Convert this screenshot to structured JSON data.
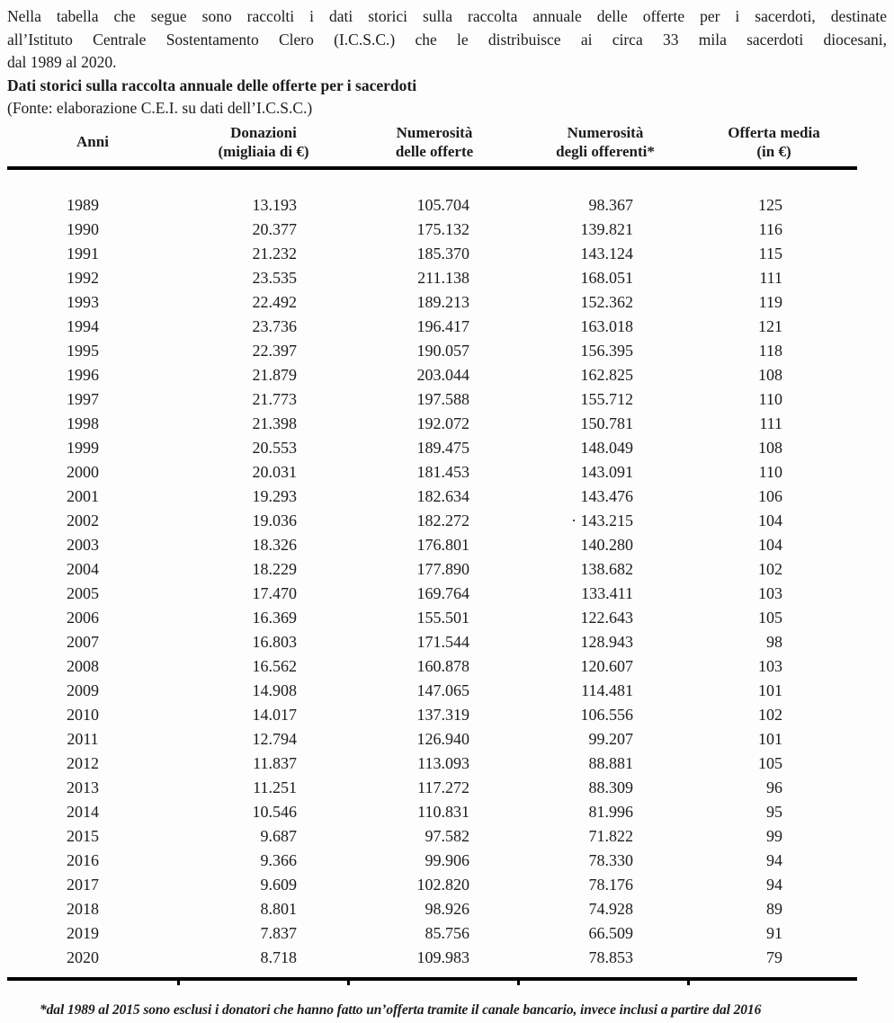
{
  "page": {
    "intro_lines": [
      "Nella tabella che segue sono raccolti i dati storici sulla raccolta annuale delle offerte per i sacerdoti, destinate",
      "all’Istituto Centrale Sostentamento Clero (I.C.S.C.) che le distribuisce ai circa 33 mila sacerdoti diocesani,",
      "dal 1989 al 2020."
    ],
    "title": "Dati storici sulla raccolta annuale delle offerte per i sacerdoti",
    "source": "(Fonte: elaborazione C.E.I. su dati dell’I.C.S.C.)",
    "footnote": "*dal 1989 al 2015 sono esclusi i donatori che hanno fatto un’offerta tramite il canale bancario, invece inclusi a partire dal 2016"
  },
  "table": {
    "column_keys": [
      "anno",
      "donazioni",
      "offerte",
      "offerenti",
      "media"
    ],
    "headers": [
      {
        "line1": "Anni",
        "line2": ""
      },
      {
        "line1": "Donazioni",
        "line2": "(migliaia di €)"
      },
      {
        "line1": "Numerosità",
        "line2": "delle offerte"
      },
      {
        "line1": "Numerosità",
        "line2": "degli offerenti*"
      },
      {
        "line1": "Offerta media",
        "line2": "(in €)"
      }
    ],
    "rows": [
      [
        "1989",
        "13.193",
        "105.704",
        "98.367",
        "125"
      ],
      [
        "1990",
        "20.377",
        "175.132",
        "139.821",
        "116"
      ],
      [
        "1991",
        "21.232",
        "185.370",
        "143.124",
        "115"
      ],
      [
        "1992",
        "23.535",
        "211.138",
        "168.051",
        "111"
      ],
      [
        "1993",
        "22.492",
        "189.213",
        "152.362",
        "119"
      ],
      [
        "1994",
        "23.736",
        "196.417",
        "163.018",
        "121"
      ],
      [
        "1995",
        "22.397",
        "190.057",
        "156.395",
        "118"
      ],
      [
        "1996",
        "21.879",
        "203.044",
        "162.825",
        "108"
      ],
      [
        "1997",
        "21.773",
        "197.588",
        "155.712",
        "110"
      ],
      [
        "1998",
        "21.398",
        "192.072",
        "150.781",
        "111"
      ],
      [
        "1999",
        "20.553",
        "189.475",
        "148.049",
        "108"
      ],
      [
        "2000",
        "20.031",
        "181.453",
        "143.091",
        "110"
      ],
      [
        "2001",
        "19.293",
        "182.634",
        "143.476",
        "106"
      ],
      [
        "2002",
        "19.036",
        "182.272",
        "· 143.215",
        "104"
      ],
      [
        "2003",
        "18.326",
        "176.801",
        "140.280",
        "104"
      ],
      [
        "2004",
        "18.229",
        "177.890",
        "138.682",
        "102"
      ],
      [
        "2005",
        "17.470",
        "169.764",
        "133.411",
        "103"
      ],
      [
        "2006",
        "16.369",
        "155.501",
        "122.643",
        "105"
      ],
      [
        "2007",
        "16.803",
        "171.544",
        "128.943",
        "98"
      ],
      [
        "2008",
        "16.562",
        "160.878",
        "120.607",
        "103"
      ],
      [
        "2009",
        "14.908",
        "147.065",
        "114.481",
        "101"
      ],
      [
        "2010",
        "14.017",
        "137.319",
        "106.556",
        "102"
      ],
      [
        "2011",
        "12.794",
        "126.940",
        "99.207",
        "101"
      ],
      [
        "2012",
        "11.837",
        "113.093",
        "88.881",
        "105"
      ],
      [
        "2013",
        "11.251",
        "117.272",
        "88.309",
        "96"
      ],
      [
        "2014",
        "10.546",
        "110.831",
        "81.996",
        "95"
      ],
      [
        "2015",
        "9.687",
        "97.582",
        "71.822",
        "99"
      ],
      [
        "2016",
        "9.366",
        "99.906",
        "78.330",
        "94"
      ],
      [
        "2017",
        "9.609",
        "102.820",
        "78.176",
        "94"
      ],
      [
        "2018",
        "8.801",
        "98.926",
        "74.928",
        "89"
      ],
      [
        "2019",
        "7.837",
        "85.756",
        "66.509",
        "91"
      ],
      [
        "2020",
        "8.718",
        "109.983",
        "78.853",
        "79"
      ]
    ]
  },
  "colors": {
    "text": "#1c1c1c",
    "rule": "#000000",
    "background": "#fdfdfd"
  }
}
